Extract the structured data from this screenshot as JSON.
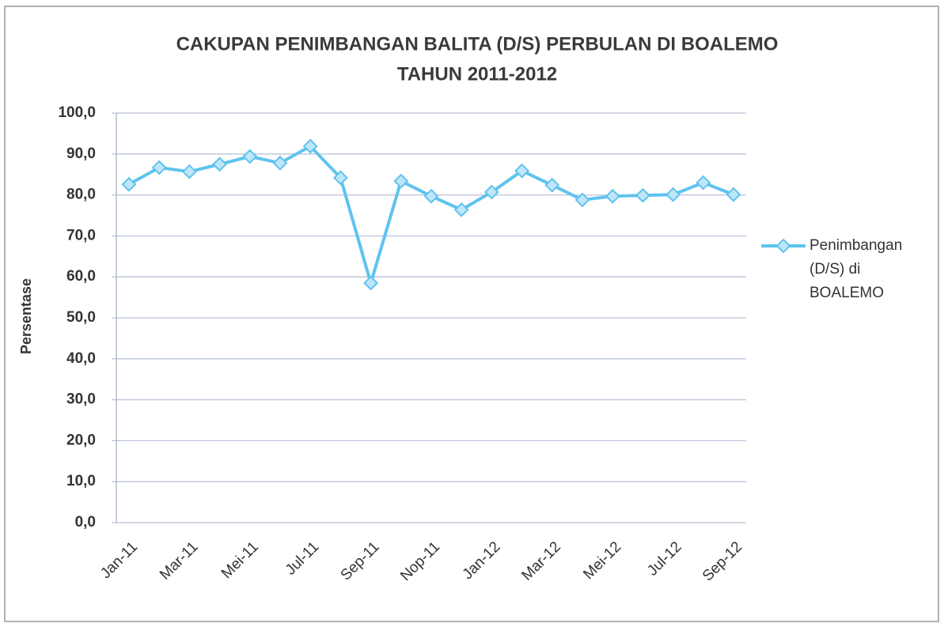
{
  "chart_data": {
    "type": "line",
    "title": [
      "CAKUPAN PENIMBANGAN BALITA (D/S) PERBULAN DI BOALEMO",
      "TAHUN 2011-2012"
    ],
    "ylabel": "Persentase",
    "categories": [
      "Jan-11",
      null,
      "Mar-11",
      null,
      "Mei-11",
      null,
      "Jul-11",
      null,
      "Sep-11",
      null,
      "Nop-11",
      null,
      "Jan-12",
      null,
      "Mar-12",
      null,
      "Mei-12",
      null,
      "Jul-12",
      null,
      "Sep-12"
    ],
    "series": [
      {
        "name": "Penimbangan (D/S) di BOALEMO",
        "color": "#5fc3ee",
        "values": [
          82.6,
          86.7,
          85.7,
          87.5,
          89.4,
          87.8,
          91.9,
          84.2,
          58.5,
          83.4,
          79.7,
          76.4,
          80.7,
          85.9,
          82.4,
          78.8,
          79.7,
          79.9,
          80.1,
          83.0,
          80.1
        ]
      }
    ],
    "ylim": [
      0,
      100
    ],
    "yticks": [
      {
        "value": 0,
        "label": "0,0"
      },
      {
        "value": 10,
        "label": "10,0"
      },
      {
        "value": 20,
        "label": "20,0"
      },
      {
        "value": 30,
        "label": "30,0"
      },
      {
        "value": 40,
        "label": "40,0"
      },
      {
        "value": 50,
        "label": "50,0"
      },
      {
        "value": 60,
        "label": "60,0"
      },
      {
        "value": 70,
        "label": "70,0"
      },
      {
        "value": 80,
        "label": "80,0"
      },
      {
        "value": 90,
        "label": "90,0"
      },
      {
        "value": 100,
        "label": "100,0"
      }
    ],
    "grid": true,
    "legend": "right"
  }
}
